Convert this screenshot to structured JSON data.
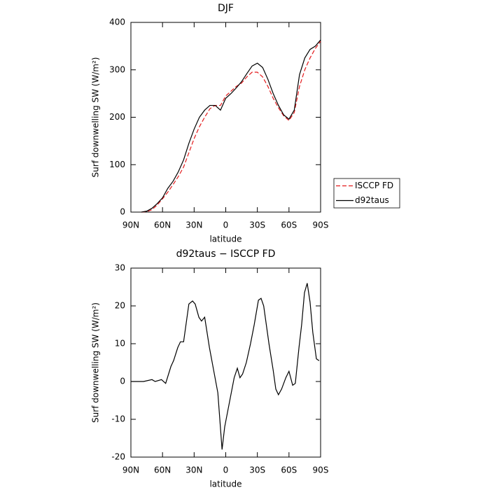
{
  "chart_data": [
    {
      "type": "line",
      "title": "DJF",
      "x_label": "latitude",
      "y_label": "Surf downwelling SW (W/m²)",
      "x": [
        80,
        75,
        70,
        65,
        60,
        55,
        50,
        45,
        40,
        35,
        30,
        25,
        20,
        15,
        10,
        5,
        0,
        -5,
        -10,
        -15,
        -20,
        -25,
        -30,
        -35,
        -40,
        -45,
        -50,
        -55,
        -60,
        -65,
        -70,
        -75,
        -80,
        -85,
        -90
      ],
      "series": [
        {
          "name": "ISCCP FD",
          "color": "#e41a1c",
          "linestyle": "dashed",
          "values": [
            0,
            1,
            5,
            15,
            28,
            42,
            58,
            75,
            95,
            125,
            155,
            180,
            200,
            218,
            225,
            225,
            245,
            255,
            265,
            272,
            285,
            295,
            295,
            285,
            265,
            240,
            220,
            203,
            193,
            210,
            265,
            300,
            325,
            345,
            360
          ]
        },
        {
          "name": "d92taus",
          "color": "#000000",
          "linestyle": "solid",
          "values": [
            0,
            2,
            8,
            18,
            30,
            50,
            65,
            85,
            110,
            145,
            175,
            200,
            215,
            225,
            225,
            215,
            240,
            250,
            262,
            275,
            292,
            308,
            314,
            305,
            280,
            250,
            225,
            205,
            196,
            215,
            290,
            325,
            343,
            350,
            363
          ]
        }
      ],
      "xlim": [
        90,
        -90
      ],
      "xticks": [
        {
          "value": 90,
          "label": "90N"
        },
        {
          "value": 60,
          "label": "60N"
        },
        {
          "value": 30,
          "label": "30N"
        },
        0,
        {
          "value": -30,
          "label": "30S"
        },
        {
          "value": -60,
          "label": "60S"
        },
        {
          "value": -90,
          "label": "90S"
        }
      ],
      "ylim": [
        0,
        400
      ],
      "yticks": [
        0,
        100,
        200,
        300,
        400
      ],
      "legend": "outside-right"
    },
    {
      "type": "line",
      "title": "d92taus − ISCCP FD",
      "x_label": "latitude",
      "y_label": "Surf downwelling SW (W/m²)",
      "x": [
        90,
        78,
        70,
        67,
        61,
        57,
        52,
        49.5,
        45.5,
        43,
        40,
        35,
        31.5,
        29,
        25.5,
        23,
        20,
        15.5,
        11.5,
        7.5,
        3.5,
        1,
        -8,
        -11,
        -13.5,
        -16,
        -19.5,
        -23.5,
        -27,
        -31,
        -33.5,
        -36,
        -41,
        -45,
        -47.5,
        -50,
        -53,
        -57,
        -60,
        -63.5,
        -66,
        -69.5,
        -72,
        -74.7,
        -77.3,
        -80,
        -82.6,
        -86,
        -88.6
      ],
      "series": [
        {
          "color": "#000000",
          "linestyle": "solid",
          "values": [
            0,
            0,
            0.5,
            0,
            0.5,
            -0.5,
            4,
            5.5,
            9,
            10.5,
            10.5,
            20.5,
            21.3,
            20.5,
            17,
            16,
            17,
            9,
            3,
            -3,
            -18,
            -12,
            1,
            3.5,
            1,
            2,
            5,
            10,
            15,
            21.5,
            22,
            20,
            10,
            3,
            -2,
            -3.5,
            -2,
            1,
            2.7,
            -1,
            -0.5,
            9,
            15,
            23.5,
            26,
            21,
            13,
            6,
            5.5
          ]
        }
      ],
      "xlim": [
        90,
        -90
      ],
      "xticks": [
        {
          "value": 90,
          "label": "90N"
        },
        {
          "value": 60,
          "label": "60N"
        },
        {
          "value": 30,
          "label": "30N"
        },
        0,
        {
          "value": -30,
          "label": "30S"
        },
        {
          "value": -60,
          "label": "60S"
        },
        {
          "value": -90,
          "label": "90S"
        }
      ],
      "ylim": [
        -20,
        30
      ],
      "yticks": [
        -20,
        -10,
        0,
        10,
        20,
        30
      ]
    }
  ]
}
